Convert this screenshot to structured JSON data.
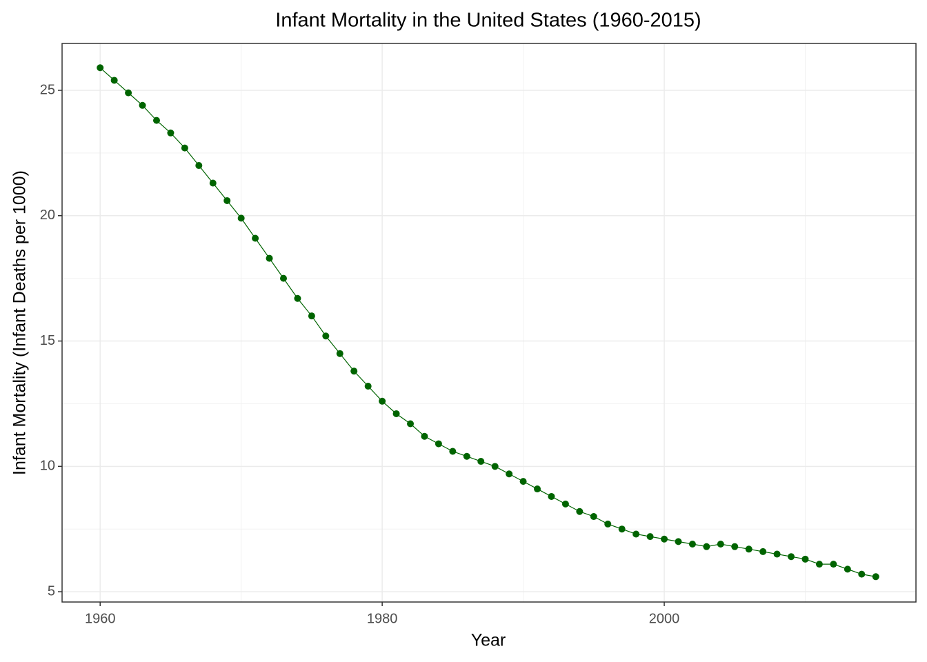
{
  "chart_data": {
    "type": "line",
    "title": "Infant Mortality in the United States (1960-2015)",
    "x_label": "Year",
    "y_label": "Infant Mortality (Infant Deaths per 1000)",
    "x": [
      1960,
      1961,
      1962,
      1963,
      1964,
      1965,
      1966,
      1967,
      1968,
      1969,
      1970,
      1971,
      1972,
      1973,
      1974,
      1975,
      1976,
      1977,
      1978,
      1979,
      1980,
      1981,
      1982,
      1983,
      1984,
      1985,
      1986,
      1987,
      1988,
      1989,
      1990,
      1991,
      1992,
      1993,
      1994,
      1995,
      1996,
      1997,
      1998,
      1999,
      2000,
      2001,
      2002,
      2003,
      2004,
      2005,
      2006,
      2007,
      2008,
      2009,
      2010,
      2011,
      2012,
      2013,
      2014,
      2015
    ],
    "series": [
      {
        "name": "Infant Mortality",
        "color": "#006400",
        "values": [
          25.9,
          25.4,
          24.9,
          24.4,
          23.8,
          23.3,
          22.7,
          22.0,
          21.3,
          20.6,
          19.9,
          19.1,
          18.3,
          17.5,
          16.7,
          16.0,
          15.2,
          14.5,
          13.8,
          13.2,
          12.6,
          12.1,
          11.7,
          11.2,
          10.9,
          10.6,
          10.4,
          10.2,
          10.0,
          9.7,
          9.4,
          9.1,
          8.8,
          8.5,
          8.2,
          8.0,
          7.7,
          7.5,
          7.3,
          7.2,
          7.1,
          7.0,
          6.9,
          6.8,
          6.9,
          6.8,
          6.7,
          6.6,
          6.5,
          6.4,
          6.3,
          6.1,
          6.1,
          5.9,
          5.7,
          5.6
        ]
      }
    ],
    "xlim": [
      1957.3,
      2017.85
    ],
    "ylim": [
      4.59,
      26.87
    ],
    "xticks": [
      1960,
      1980,
      2000
    ],
    "yticks": [
      5,
      10,
      15,
      20,
      25
    ],
    "grid": true
  }
}
